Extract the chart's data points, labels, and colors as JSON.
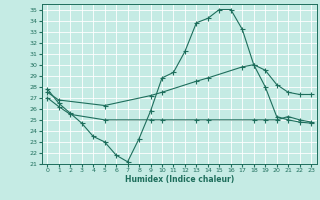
{
  "xlabel": "Humidex (Indice chaleur)",
  "xlim": [
    -0.5,
    23.5
  ],
  "ylim": [
    21.0,
    35.5
  ],
  "yticks": [
    21,
    22,
    23,
    24,
    25,
    26,
    27,
    28,
    29,
    30,
    31,
    32,
    33,
    34,
    35
  ],
  "xticks": [
    0,
    1,
    2,
    3,
    4,
    5,
    6,
    7,
    8,
    9,
    10,
    11,
    12,
    13,
    14,
    15,
    16,
    17,
    18,
    19,
    20,
    21,
    22,
    23
  ],
  "bg_color": "#c5ebe4",
  "line_color": "#1e6e5c",
  "grid_color": "#ffffff",
  "curve1_x": [
    0,
    1,
    2,
    3,
    4,
    5,
    6,
    7,
    8,
    9,
    10,
    11,
    12,
    13,
    14,
    15,
    16,
    17,
    18,
    19,
    20,
    21,
    22,
    23
  ],
  "curve1_y": [
    27.8,
    26.5,
    25.6,
    24.7,
    23.5,
    23.0,
    21.8,
    21.2,
    23.3,
    25.8,
    28.8,
    29.3,
    31.2,
    33.8,
    34.2,
    35.0,
    35.0,
    33.2,
    30.0,
    28.0,
    25.3,
    25.0,
    24.8,
    24.7
  ],
  "curve2_x": [
    0,
    1,
    5,
    9,
    10,
    13,
    14,
    17,
    18,
    19,
    20,
    21,
    22,
    23
  ],
  "curve2_y": [
    27.5,
    26.8,
    26.3,
    27.2,
    27.5,
    28.5,
    28.8,
    29.8,
    30.0,
    29.5,
    28.2,
    27.5,
    27.3,
    27.3
  ],
  "curve3_x": [
    0,
    1,
    2,
    5,
    9,
    10,
    13,
    14,
    18,
    19,
    20,
    21,
    22,
    23
  ],
  "curve3_y": [
    27.0,
    26.2,
    25.5,
    25.0,
    25.0,
    25.0,
    25.0,
    25.0,
    25.0,
    25.0,
    25.0,
    25.3,
    25.0,
    24.8
  ]
}
